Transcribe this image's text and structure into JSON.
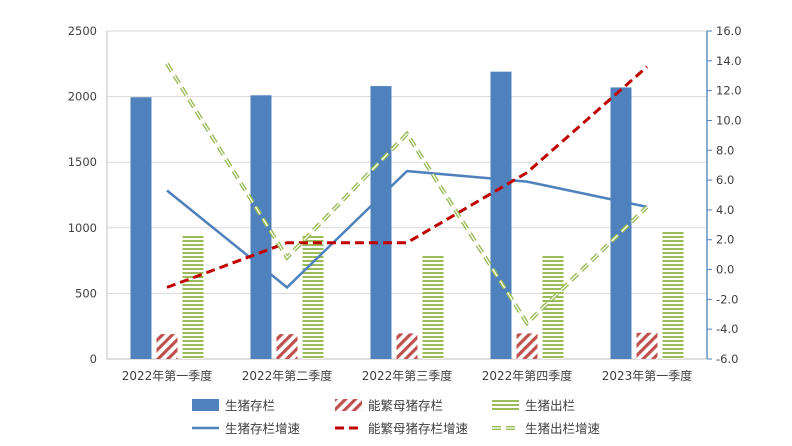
{
  "chart_data": {
    "type": "bar",
    "title": "",
    "categories": [
      "2022年第一季度",
      "2022年第二季度",
      "2022年第三季度",
      "2022年第四季度",
      "2023年第一季度"
    ],
    "y_left": {
      "min": 0,
      "max": 2500,
      "step": 500,
      "ticks": [
        "0",
        "500",
        "1000",
        "1500",
        "2000",
        "2500"
      ]
    },
    "y_right": {
      "min": -6,
      "max": 16,
      "step": 2,
      "ticks": [
        "-6.0",
        "-4.0",
        "-2.0",
        "0.0",
        "2.0",
        "4.0",
        "6.0",
        "8.0",
        "10.0",
        "12.0",
        "14.0",
        "16.0"
      ]
    },
    "bar_series": [
      {
        "name": "生猪存栏",
        "color": "#4f81bd",
        "pattern": "solid",
        "values": [
          1995,
          2010,
          2080,
          2190,
          2070
        ]
      },
      {
        "name": "能繁母猪存栏",
        "color": "#c0504d",
        "pattern": "diagonal",
        "values": [
          190,
          190,
          195,
          195,
          200
        ]
      },
      {
        "name": "生猪出栏",
        "color": "#9bbb59",
        "pattern": "horizontal",
        "values": [
          950,
          950,
          800,
          800,
          980
        ]
      }
    ],
    "line_series": [
      {
        "name": "生猪存栏增速",
        "color": "#4f81bd",
        "style": "solid",
        "values": [
          5.3,
          -1.2,
          6.6,
          5.9,
          4.2
        ]
      },
      {
        "name": "能繁母猪存栏增速",
        "color": "#c00000",
        "style": "dashed",
        "values": [
          -1.2,
          1.8,
          1.8,
          6.5,
          13.6
        ]
      },
      {
        "name": "生猪出栏增速",
        "color": "#9bbb59",
        "style": "double-dashed",
        "values": [
          13.8,
          0.8,
          9.1,
          -3.6,
          4.2
        ]
      }
    ],
    "legend": {
      "position": "bottom",
      "items": [
        "生猪存栏",
        "能繁母猪存栏",
        "生猪出栏",
        "生猪存栏增速",
        "能繁母猪存栏增速",
        "生猪出栏增速"
      ]
    }
  }
}
